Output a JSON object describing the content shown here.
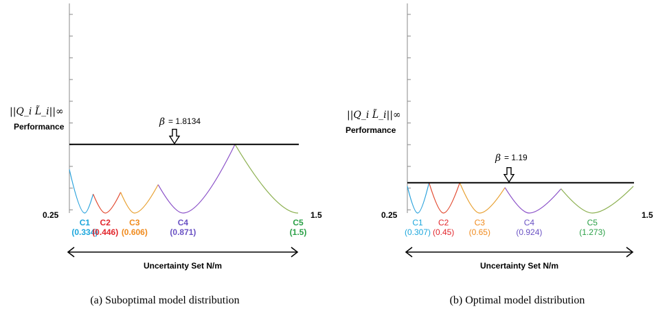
{
  "chart_data": [
    {
      "id": "a",
      "type": "line",
      "caption": "(a)  Suboptimal model distribution",
      "ylabel_norm": "||Q_i L̃_i||∞",
      "ylabel": "Performance",
      "xlabel": "Uncertainty Set N/m",
      "x_min_label": "0.25",
      "x_max_label": "1.5",
      "xlim": [
        0.25,
        1.5
      ],
      "beta": {
        "symbol": "β",
        "text": "= 1.8134",
        "value": 1.8134
      },
      "models": [
        {
          "name": "C1",
          "value_label": "(0.334)",
          "x": 0.334,
          "color": "#1ba6dc",
          "bold": true
        },
        {
          "name": "C2",
          "value_label": "(0.446)",
          "x": 0.446,
          "color": "#e2262c",
          "bold": true
        },
        {
          "name": "C3",
          "value_label": "(0.606)",
          "x": 0.606,
          "color": "#f08a1c",
          "bold": true
        },
        {
          "name": "C4",
          "value_label": "(0.871)",
          "x": 0.871,
          "color": "#6a52c4",
          "bold": true
        },
        {
          "name": "C5",
          "value_label": "(1.5)",
          "x": 1.5,
          "color": "#2aa046",
          "bold": true
        }
      ],
      "series": [
        {
          "model": "C1",
          "color": "#2aa2dc",
          "points": [
            [
              0.25,
              1.15
            ],
            [
              0.334,
              0.0
            ],
            [
              0.38,
              0.5
            ]
          ]
        },
        {
          "model": "C2",
          "color": "#e24a30",
          "points": [
            [
              0.38,
              0.5
            ],
            [
              0.446,
              0.0
            ],
            [
              0.53,
              0.55
            ]
          ]
        },
        {
          "model": "C3",
          "color": "#e8a030",
          "points": [
            [
              0.53,
              0.55
            ],
            [
              0.606,
              0.0
            ],
            [
              0.735,
              0.75
            ]
          ]
        },
        {
          "model": "C4",
          "color": "#8a50c8",
          "points": [
            [
              0.735,
              0.75
            ],
            [
              0.871,
              0.0
            ],
            [
              1.155,
              1.8134
            ]
          ]
        },
        {
          "model": "C5",
          "color": "#8cb050",
          "points": [
            [
              1.155,
              1.8134
            ],
            [
              1.5,
              0.0
            ],
            [
              1.5,
              0.0
            ]
          ]
        }
      ]
    },
    {
      "id": "b",
      "type": "line",
      "caption": "(b)  Optimal model distribution",
      "ylabel_norm": "||Q_i L̃_i||∞",
      "ylabel": "Performance",
      "xlabel": "Uncertainty Set N/m",
      "x_min_label": "0.25",
      "x_max_label": "1.5",
      "xlim": [
        0.25,
        1.5
      ],
      "beta": {
        "symbol": "β",
        "text": "= 1.19",
        "value": 1.19
      },
      "models": [
        {
          "name": "C1",
          "value_label": "(0.307)",
          "x": 0.307,
          "color": "#1ba6dc",
          "bold": false
        },
        {
          "name": "C2",
          "value_label": "(0.45)",
          "x": 0.45,
          "color": "#e2262c",
          "bold": false
        },
        {
          "name": "C3",
          "value_label": "(0.65)",
          "x": 0.65,
          "color": "#f08a1c",
          "bold": false
        },
        {
          "name": "C4",
          "value_label": "(0.924)",
          "x": 0.924,
          "color": "#6a52c4",
          "bold": false
        },
        {
          "name": "C5",
          "value_label": "(1.273)",
          "x": 1.273,
          "color": "#2aa046",
          "bold": false
        }
      ],
      "series": [
        {
          "model": "C1",
          "color": "#2aa2dc",
          "points": [
            [
              0.25,
              1.05
            ],
            [
              0.307,
              0.0
            ],
            [
              0.37,
              1.19
            ]
          ]
        },
        {
          "model": "C2",
          "color": "#e24a30",
          "points": [
            [
              0.37,
              1.19
            ],
            [
              0.45,
              0.0
            ],
            [
              0.54,
              1.19
            ]
          ]
        },
        {
          "model": "C3",
          "color": "#e8a030",
          "points": [
            [
              0.54,
              1.19
            ],
            [
              0.65,
              0.0
            ],
            [
              0.79,
              1.0
            ]
          ]
        },
        {
          "model": "C4",
          "color": "#8a50c8",
          "points": [
            [
              0.79,
              1.0
            ],
            [
              0.924,
              0.0
            ],
            [
              1.1,
              0.95
            ]
          ]
        },
        {
          "model": "C5",
          "color": "#8cb050",
          "points": [
            [
              1.1,
              0.95
            ],
            [
              1.273,
              0.0
            ],
            [
              1.5,
              1.05
            ]
          ]
        }
      ]
    }
  ]
}
